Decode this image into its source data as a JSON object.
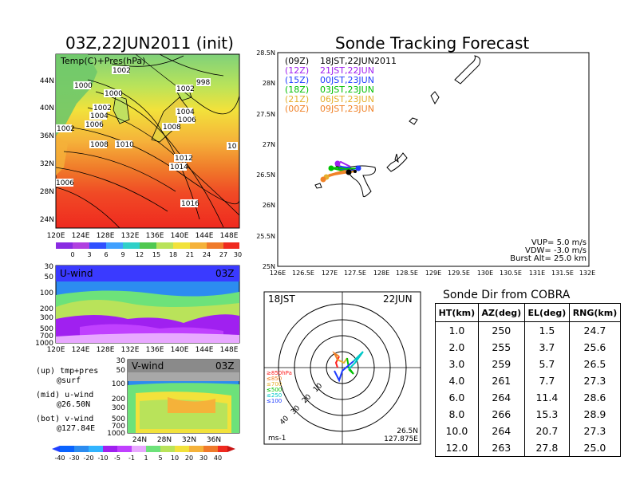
{
  "map_panel": {
    "title": "03Z,22JUN2011 (init)",
    "label": "Temp(C)+Pres(hPa)",
    "x_ticks": [
      "120E",
      "124E",
      "128E",
      "132E",
      "136E",
      "140E",
      "144E",
      "148E"
    ],
    "y_ticks": [
      "44N",
      "40N",
      "36N",
      "32N",
      "28N",
      "24N"
    ],
    "isobar_labels": [
      "1002",
      "1000",
      "998",
      "1000",
      "1002",
      "1002",
      "1004",
      "1006",
      "1002",
      "1004",
      "1006",
      "1008",
      "1008",
      "1010",
      "1012",
      "1014",
      "1016",
      "10",
      "1006"
    ],
    "colorbar_ticks": [
      "0",
      "3",
      "6",
      "9",
      "12",
      "15",
      "18",
      "21",
      "24",
      "27",
      "30"
    ]
  },
  "u_panel": {
    "label": "U-wind",
    "time": "03Z",
    "y_ticks": [
      "30",
      "50",
      "100",
      "200",
      "300",
      "500",
      "700",
      "1000"
    ],
    "x_ticks": [
      "120E",
      "124E",
      "128E",
      "132E",
      "136E",
      "140E",
      "144E",
      "148E"
    ]
  },
  "v_panel": {
    "label": "V-wind",
    "time": "03Z",
    "y_ticks": [
      "30",
      "50",
      "100",
      "200",
      "300",
      "500",
      "700",
      "1000"
    ],
    "x_ticks": [
      "24N",
      "28N",
      "32N",
      "36N"
    ]
  },
  "legend_notes": [
    {
      "line1": "(up) tmp+pres",
      "line2": "@surf"
    },
    {
      "line1": "(mid) u-wind",
      "line2": "@26.50N"
    },
    {
      "line1": "(bot) v-wind",
      "line2": "@127.84E"
    }
  ],
  "wind_colorbar_ticks": [
    "-40",
    "-30",
    "-20",
    "-10",
    "-5",
    "-1",
    "1",
    "5",
    "10",
    "20",
    "30",
    "40"
  ],
  "track_panel": {
    "title": "Sonde Tracking Forecast",
    "x_ticks": [
      "126E",
      "126.5E",
      "127E",
      "127.5E",
      "128E",
      "128.5E",
      "129E",
      "129.5E",
      "130E",
      "130.5E",
      "131E",
      "131.5E",
      "132E"
    ],
    "y_ticks": [
      "28.5N",
      "28N",
      "27.5N",
      "27N",
      "26.5N",
      "26N",
      "25.5N",
      "25N"
    ],
    "legend": [
      {
        "utc": "(09Z)",
        "local": "18JST,22JUN2011",
        "color": "#000000"
      },
      {
        "utc": "(12Z)",
        "local": "21JST,22JUN",
        "color": "#a020f0"
      },
      {
        "utc": "(15Z)",
        "local": "00JST,23JUN",
        "color": "#1e3cff"
      },
      {
        "utc": "(18Z)",
        "local": "03JST,23JUN",
        "color": "#00c000"
      },
      {
        "utc": "(21Z)",
        "local": "06JST,23JUN",
        "color": "#e6af2d"
      },
      {
        "utc": "(00Z)",
        "local": "09JST,23JUN",
        "color": "#f08228"
      }
    ],
    "params": [
      "VUP= 5.0 m/s",
      "VDW= -3.0 m/s",
      "Burst Alt= 25.0 km"
    ]
  },
  "hodograph": {
    "time_label": "18JST",
    "date_label": "22JUN",
    "ring_labels": [
      "10",
      "20",
      "30",
      "40"
    ],
    "unit": "ms-1",
    "location": [
      "26.5N",
      "127.875E"
    ],
    "level_legend": [
      {
        "label": "≥850hPa",
        "color": "#ff2020"
      },
      {
        "label": "≤850",
        "color": "#f08228"
      },
      {
        "label": "≤700",
        "color": "#e6af2d"
      },
      {
        "label": "≤500",
        "color": "#00c000"
      },
      {
        "label": "≤250",
        "color": "#00c8c8"
      },
      {
        "label": "≤100",
        "color": "#1e3cff"
      }
    ]
  },
  "sonde_table": {
    "title": "Sonde Dir from COBRA",
    "headers": [
      "HT(km)",
      "AZ(deg)",
      "EL(deg)",
      "RNG(km)"
    ],
    "rows": [
      [
        "1.0",
        "250",
        "1.5",
        "24.7"
      ],
      [
        "2.0",
        "255",
        "3.7",
        "25.6"
      ],
      [
        "3.0",
        "259",
        "5.7",
        "26.5"
      ],
      [
        "4.0",
        "261",
        "7.7",
        "27.3"
      ],
      [
        "6.0",
        "264",
        "11.4",
        "28.6"
      ],
      [
        "8.0",
        "266",
        "15.3",
        "28.9"
      ],
      [
        "10.0",
        "264",
        "20.7",
        "27.3"
      ],
      [
        "12.0",
        "263",
        "27.8",
        "25.0"
      ]
    ]
  },
  "chart_data": [
    {
      "type": "heatmap",
      "title": "03Z,22JUN2011 (init)",
      "label": "Temp(C)+Pres(hPa)",
      "x_range": [
        "120E",
        "150E"
      ],
      "y_range": [
        "22N",
        "46N"
      ],
      "colorbar": [
        0,
        3,
        6,
        9,
        12,
        15,
        18,
        21,
        24,
        27,
        30
      ],
      "isobar_labels_hPa": [
        998,
        1000,
        1002,
        1004,
        1006,
        1008,
        1010,
        1012,
        1014,
        1016
      ]
    },
    {
      "type": "heatmap",
      "label": "U-wind",
      "x_range": [
        "120E",
        "150E"
      ],
      "y_levels_hPa": [
        30,
        50,
        100,
        200,
        300,
        500,
        700,
        1000
      ],
      "colorbar": [
        -40,
        -30,
        -20,
        -10,
        -5,
        -1,
        1,
        5,
        10,
        20,
        30,
        40
      ]
    },
    {
      "type": "heatmap",
      "label": "V-wind",
      "x_range": [
        "20N",
        "40N"
      ],
      "y_levels_hPa": [
        30,
        50,
        100,
        200,
        300,
        500,
        700,
        1000
      ],
      "colorbar": [
        -40,
        -30,
        -20,
        -10,
        -5,
        -1,
        1,
        5,
        10,
        20,
        30,
        40
      ]
    },
    {
      "type": "line",
      "title": "Sonde Tracking Forecast",
      "x_range": [
        126,
        132
      ],
      "y_range": [
        25,
        28.5
      ],
      "launch_point": [
        127.84,
        26.5
      ],
      "series": [
        {
          "name": "(09Z) 18JST,22JUN2011",
          "color": "#000000",
          "x": [
            127.84,
            127.75,
            127.7,
            127.6,
            127.5,
            127.4,
            127.35,
            127.3,
            127.45,
            127.65,
            127.8
          ],
          "y": [
            26.5,
            26.52,
            26.55,
            26.57,
            26.56,
            26.58,
            26.6,
            26.57,
            26.55,
            26.54,
            26.55
          ]
        },
        {
          "name": "(12Z) 21JST,22JUN",
          "color": "#a020f0",
          "x": [
            127.84,
            127.7,
            127.6,
            127.5,
            127.45,
            127.5,
            127.6,
            127.75,
            127.9
          ],
          "y": [
            26.5,
            26.52,
            26.55,
            26.57,
            26.6,
            26.62,
            26.59,
            26.57,
            26.56
          ]
        },
        {
          "name": "(15Z) 00JST,23JUN",
          "color": "#1e3cff",
          "x": [
            127.84,
            127.7,
            127.55,
            127.45,
            127.5,
            127.65,
            127.8,
            127.9
          ],
          "y": [
            26.5,
            26.51,
            26.53,
            26.55,
            26.57,
            26.56,
            26.55,
            26.56
          ]
        },
        {
          "name": "(18Z) 03JST,23JUN",
          "color": "#00c000",
          "x": [
            127.84,
            127.7,
            127.55,
            127.4,
            127.3,
            127.45,
            127.65,
            127.85
          ],
          "y": [
            26.5,
            26.51,
            26.52,
            26.54,
            26.55,
            26.56,
            26.54,
            26.55
          ]
        },
        {
          "name": "(21Z) 06JST,23JUN",
          "color": "#e6af2d",
          "x": [
            127.84,
            127.65,
            127.45,
            127.3,
            127.25,
            127.35,
            127.5,
            127.7
          ],
          "y": [
            26.5,
            26.5,
            26.49,
            26.47,
            26.44,
            26.47,
            26.5,
            26.52
          ]
        },
        {
          "name": "(00Z) 09JST,23JUN",
          "color": "#f08228",
          "x": [
            127.84,
            127.6,
            127.4,
            127.25,
            127.2,
            127.3,
            127.45,
            127.6
          ],
          "y": [
            26.5,
            26.49,
            26.47,
            26.44,
            26.41,
            26.46,
            26.49,
            26.52
          ]
        }
      ]
    },
    {
      "type": "line",
      "title": "hodograph",
      "rings_ms": [
        10,
        20,
        30,
        40
      ],
      "series": [
        {
          "name": "≥850hPa",
          "color": "#ff2020",
          "x": [
            -3,
            -4,
            -2
          ],
          "y": [
            0,
            3,
            7
          ]
        },
        {
          "name": "≤850",
          "color": "#f08228",
          "x": [
            -2,
            -5,
            -3
          ],
          "y": [
            7,
            9,
            5
          ]
        },
        {
          "name": "≤700",
          "color": "#e6af2d",
          "x": [
            -3,
            1,
            3
          ],
          "y": [
            5,
            3,
            6
          ]
        },
        {
          "name": "≤500",
          "color": "#00c000",
          "x": [
            3,
            4,
            7,
            4
          ],
          "y": [
            6,
            0,
            -4,
            -1
          ]
        },
        {
          "name": "≤250",
          "color": "#00c8c8",
          "x": [
            4,
            8,
            13,
            7
          ],
          "y": [
            -1,
            3,
            10,
            4
          ]
        },
        {
          "name": "≤100",
          "color": "#1e3cff",
          "x": [
            7,
            0,
            -2,
            -5
          ],
          "y": [
            4,
            -2,
            -8,
            -2
          ]
        }
      ]
    }
  ]
}
